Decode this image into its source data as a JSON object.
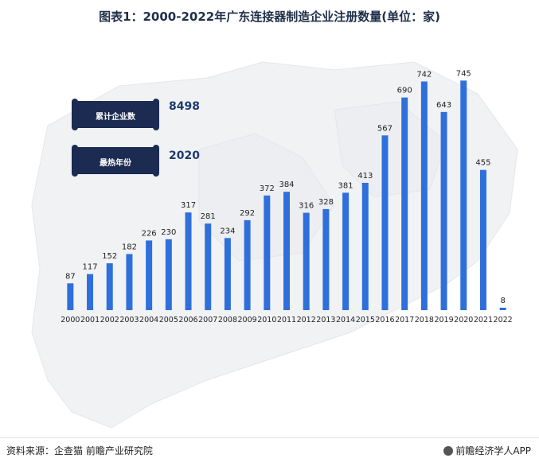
{
  "title": "图表1：2000-2022年广东连接器制造企业注册数量(单位：家)",
  "stats": [
    {
      "label": "累计企业数",
      "value": "8498"
    },
    {
      "label": "最热年份",
      "value": "2020"
    }
  ],
  "chart_data": {
    "type": "bar",
    "categories": [
      "2000",
      "2001",
      "2002",
      "2003",
      "2004",
      "2005",
      "2006",
      "2007",
      "2008",
      "2009",
      "2010",
      "2011",
      "2012",
      "2013",
      "2014",
      "2015",
      "2016",
      "2017",
      "2018",
      "2019",
      "2020",
      "2021",
      "2022"
    ],
    "values": [
      87,
      117,
      152,
      182,
      226,
      230,
      317,
      281,
      234,
      292,
      372,
      384,
      316,
      328,
      381,
      413,
      567,
      690,
      742,
      643,
      745,
      455,
      8
    ],
    "title": "图表1：2000-2022年广东连接器制造企业注册数量(单位：家)",
    "xlabel": "",
    "ylabel": "",
    "ylim": [
      0,
      800
    ],
    "grid": false,
    "bar_color": "#2f6fdc"
  },
  "source": "资料来源：企查猫 前瞻产业研究院",
  "brand": "前瞻经济学人APP",
  "colors": {
    "scroll": "#1b2b52",
    "title": "#1f2f4a"
  }
}
